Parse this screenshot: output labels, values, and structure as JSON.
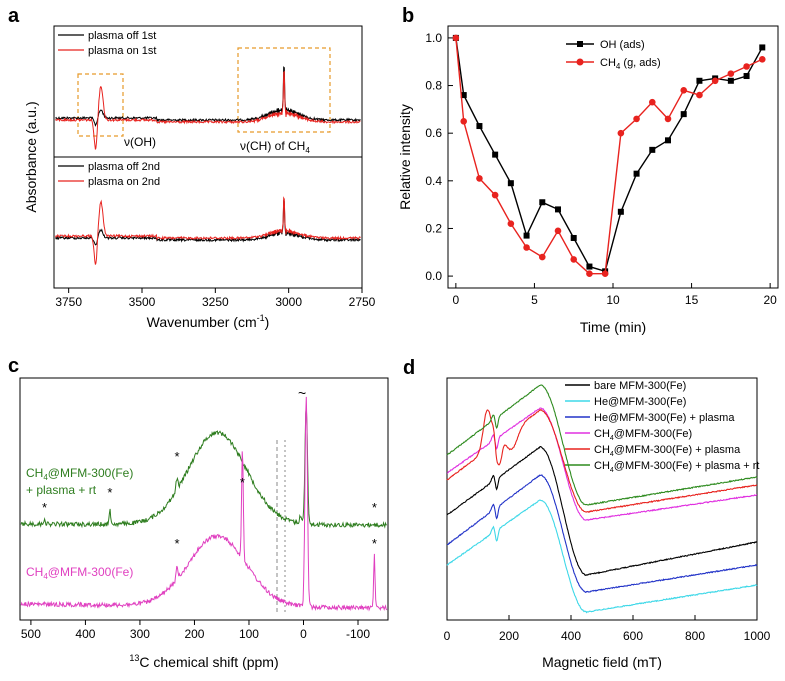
{
  "panels": [
    {
      "letter": "a"
    },
    {
      "letter": "b"
    },
    {
      "letter": "c"
    },
    {
      "letter": "d"
    }
  ],
  "chart_data": [
    {
      "id": "a",
      "type": "line",
      "xlabel_main": "Wavenumber (cm",
      "xlabel_sup": "-1",
      "xlabel_end": ")",
      "ylabel": "Absorbance (a.u.)",
      "xlim": [
        3800,
        2750
      ],
      "xticks": [
        3750,
        3500,
        3250,
        3000,
        2750
      ],
      "legend_top": [
        "plasma off 1st",
        "plasma on 1st"
      ],
      "legend_bottom": [
        "plasma off 2nd",
        "plasma on 2nd"
      ],
      "colors": {
        "off": "#000000",
        "on": "#e8231f",
        "box": "#e79a2a"
      },
      "annotations": {
        "oh": "ν(OH)",
        "ch_main": "ν(CH) of CH",
        "ch_sub": "4"
      },
      "feature_wavenumbers": {
        "oh_band": 3650,
        "ch_band": 3016
      }
    },
    {
      "id": "b",
      "type": "line",
      "xlabel": "Time (min)",
      "ylabel": "Relative intensity",
      "xlim": [
        -0.5,
        20.5
      ],
      "ylim": [
        -0.05,
        1.05
      ],
      "xticks": [
        0,
        5,
        10,
        15,
        20
      ],
      "yticks": [
        0.0,
        0.2,
        0.4,
        0.6,
        0.8,
        1.0
      ],
      "series": [
        {
          "name": "OH (ads)",
          "color": "#000000",
          "marker": "square",
          "x": [
            0,
            0.5,
            1.5,
            2.5,
            3.5,
            4.5,
            5.5,
            6.5,
            7.5,
            8.5,
            9.5,
            10.5,
            11.5,
            12.5,
            13.5,
            14.5,
            15.5,
            16.5,
            17.5,
            18.5,
            19.5
          ],
          "y": [
            1.0,
            0.76,
            0.63,
            0.51,
            0.39,
            0.17,
            0.31,
            0.28,
            0.16,
            0.04,
            0.02,
            0.27,
            0.43,
            0.53,
            0.57,
            0.68,
            0.82,
            0.83,
            0.82,
            0.84,
            0.96
          ]
        },
        {
          "name_main": "CH",
          "name_sub": "4",
          "name_end": " (g, ads)",
          "color": "#e8231f",
          "marker": "circle",
          "x": [
            0,
            0.5,
            1.5,
            2.5,
            3.5,
            4.5,
            5.5,
            6.5,
            7.5,
            8.5,
            9.5,
            10.5,
            11.5,
            12.5,
            13.5,
            14.5,
            15.5,
            16.5,
            17.5,
            18.5,
            19.5
          ],
          "y": [
            1.0,
            0.65,
            0.41,
            0.34,
            0.22,
            0.12,
            0.08,
            0.19,
            0.07,
            0.01,
            0.01,
            0.6,
            0.66,
            0.73,
            0.66,
            0.78,
            0.76,
            0.82,
            0.85,
            0.88,
            0.91
          ]
        }
      ]
    },
    {
      "id": "c",
      "type": "line",
      "xlabel_sup": "13",
      "xlabel_main": "C chemical shift (ppm)",
      "xlim": [
        520,
        -155
      ],
      "xticks": [
        500,
        400,
        300,
        200,
        100,
        0,
        -100
      ],
      "xtick_labels": [
        "500",
        "400",
        "300",
        "200",
        "100",
        "0",
        "-100"
      ],
      "label_top_line1_main": "CH",
      "label_top_line1_sub": "4",
      "label_top_line1_end": "@MFM-300(Fe)",
      "label_top_line2": "+ plasma + rt",
      "label_bottom_main": "CH",
      "label_bottom_sub": "4",
      "label_bottom_end": "@MFM-300(Fe)",
      "colors": {
        "top": "#2e7d1f",
        "bottom": "#e040c0"
      },
      "star": "*",
      "tilde": "~",
      "top_star_ppm": [
        475,
        355,
        232,
        -130
      ],
      "bottom_star_ppm": [
        232,
        112,
        -130
      ],
      "peak_ppm": [
        -5,
        112,
        -130
      ]
    },
    {
      "id": "d",
      "type": "line",
      "xlabel": "Magnetic field (mT)",
      "xlim": [
        0,
        1000
      ],
      "xticks": [
        0,
        200,
        400,
        600,
        800,
        1000
      ],
      "legend": [
        {
          "label": "bare MFM-300(Fe)",
          "color": "#000000"
        },
        {
          "label": "He@MFM-300(Fe)",
          "color": "#3fd8e8"
        },
        {
          "label": "He@MFM-300(Fe) + plasma",
          "color": "#2233c8"
        },
        {
          "label_main": "CH",
          "label_sub": "4",
          "label_end": "@MFM-300(Fe)",
          "color": "#e030e0"
        },
        {
          "label_main": "CH",
          "label_sub": "4",
          "label_end": "@MFM-300(Fe) + plasma",
          "color": "#e8231f"
        },
        {
          "label_main": "CH",
          "label_sub": "4",
          "label_end": "@MFM-300(Fe) + plasma + rt",
          "color": "#2e8b1f"
        }
      ]
    }
  ]
}
